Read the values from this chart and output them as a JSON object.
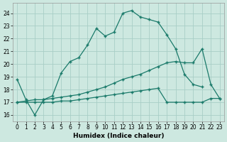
{
  "xlabel": "Humidex (Indice chaleur)",
  "background_color": "#cde8e0",
  "grid_color": "#a8cec6",
  "line_color": "#1a7a6a",
  "ylim": [
    15.5,
    24.8
  ],
  "xlim": [
    -0.5,
    23.5
  ],
  "yticks": [
    16,
    17,
    18,
    19,
    20,
    21,
    22,
    23,
    24
  ],
  "xticks": [
    0,
    1,
    2,
    3,
    4,
    5,
    6,
    7,
    8,
    9,
    10,
    11,
    12,
    13,
    14,
    15,
    16,
    17,
    18,
    19,
    20,
    21,
    22,
    23
  ],
  "curve1_x": [
    0,
    1,
    2,
    3,
    4,
    5,
    6,
    7,
    8,
    9,
    10,
    11,
    12,
    13,
    14,
    15,
    16,
    17,
    18,
    19,
    20,
    21
  ],
  "curve1_y": [
    18.8,
    17.2,
    16.0,
    17.2,
    17.5,
    19.3,
    20.2,
    20.5,
    21.5,
    22.8,
    22.2,
    22.5,
    24.0,
    24.2,
    23.7,
    23.5,
    23.3,
    22.3,
    21.2,
    19.2,
    18.4,
    18.2
  ],
  "curve2_x": [
    0,
    1,
    2,
    3,
    4,
    5,
    6,
    7,
    8,
    9,
    10,
    11,
    12,
    13,
    14,
    15,
    16,
    17,
    18,
    19,
    20,
    21,
    22,
    23
  ],
  "curve2_y": [
    17.0,
    17.1,
    17.2,
    17.2,
    17.3,
    17.4,
    17.5,
    17.6,
    17.8,
    18.0,
    18.2,
    18.5,
    18.8,
    19.0,
    19.2,
    19.5,
    19.8,
    20.1,
    20.2,
    20.1,
    20.1,
    21.2,
    18.4,
    17.3
  ],
  "curve3_x": [
    0,
    1,
    2,
    3,
    4,
    5,
    6,
    7,
    8,
    9,
    10,
    11,
    12,
    13,
    14,
    15,
    16,
    17,
    18,
    19,
    20,
    21,
    22,
    23
  ],
  "curve3_y": [
    17.0,
    17.0,
    17.0,
    17.0,
    17.0,
    17.1,
    17.1,
    17.2,
    17.3,
    17.4,
    17.5,
    17.6,
    17.7,
    17.8,
    17.9,
    18.0,
    18.1,
    17.0,
    17.0,
    17.0,
    17.0,
    17.0,
    17.3,
    17.3
  ]
}
